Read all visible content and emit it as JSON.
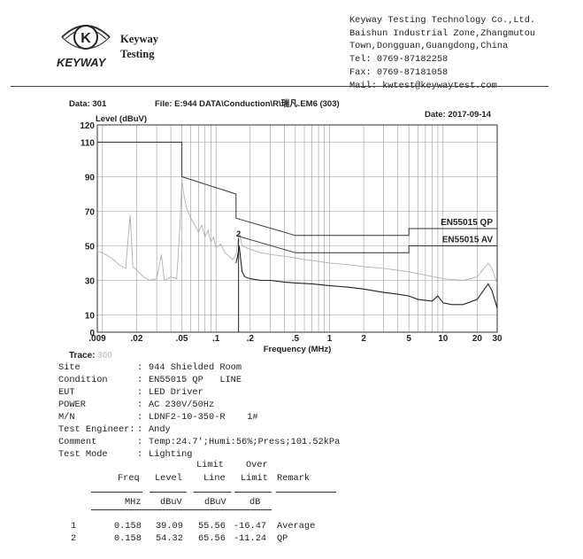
{
  "header": {
    "brand_logo_text": "KEYWAY",
    "company_short": [
      "Keyway",
      "Testing"
    ],
    "address_lines": [
      "Keyway Testing Technology Co.,Ltd.",
      "Baishun Industrial Zone,Zhangmutou",
      "Town,Dongguan,Guangdong,China",
      "Tel: 0769-87182258",
      "Fax: 0769-87181058",
      "Mail: kwtest@keywaytest.com"
    ]
  },
  "report": {
    "data_label": "Data: 301",
    "file_label": "File: E:944 DATA\\Conduction\\R\\瑞凡.EM6  (303)",
    "date_label": "Date: 2017-09-14",
    "trace_label": "Trace:",
    "trace_value": "300"
  },
  "chart_data": {
    "type": "line",
    "ylabel": "Level (dBuV)",
    "xlabel": "Frequency (MHz)",
    "x_scale": "log",
    "xlim": [
      0.009,
      30
    ],
    "ylim": [
      0,
      120
    ],
    "x_ticks": [
      {
        "v": 0.009,
        "label": ".009"
      },
      {
        "v": 0.02,
        "label": ".02"
      },
      {
        "v": 0.05,
        "label": ".05"
      },
      {
        "v": 0.1,
        "label": ".1"
      },
      {
        "v": 0.2,
        "label": ".2"
      },
      {
        "v": 0.5,
        "label": ".5"
      },
      {
        "v": 1,
        "label": "1"
      },
      {
        "v": 2,
        "label": "2"
      },
      {
        "v": 5,
        "label": "5"
      },
      {
        "v": 10,
        "label": "10"
      },
      {
        "v": 20,
        "label": "20"
      },
      {
        "v": 30,
        "label": "30"
      }
    ],
    "y_ticks": [
      0,
      10,
      30,
      50,
      70,
      90,
      110,
      120
    ],
    "grid": true,
    "limit_lines": [
      {
        "name": "EN55015 QP",
        "points": [
          [
            0.009,
            110
          ],
          [
            0.05,
            110
          ],
          [
            0.05,
            90
          ],
          [
            0.15,
            80
          ],
          [
            0.15,
            66
          ],
          [
            0.5,
            56
          ],
          [
            5,
            56
          ],
          [
            5,
            60
          ],
          [
            30,
            60
          ]
        ]
      },
      {
        "name": "EN55015 AV",
        "points": [
          [
            0.15,
            56
          ],
          [
            0.5,
            46
          ],
          [
            5,
            46
          ],
          [
            5,
            50
          ],
          [
            30,
            50
          ]
        ]
      }
    ],
    "series": [
      {
        "color": "#b0b0b0",
        "points": [
          [
            0.009,
            47
          ],
          [
            0.01,
            46
          ],
          [
            0.012,
            43
          ],
          [
            0.014,
            39
          ],
          [
            0.016,
            37
          ],
          [
            0.0175,
            68
          ],
          [
            0.0185,
            38
          ],
          [
            0.02,
            36
          ],
          [
            0.023,
            32
          ],
          [
            0.026,
            30
          ],
          [
            0.03,
            31
          ],
          [
            0.033,
            45
          ],
          [
            0.035,
            30
          ],
          [
            0.04,
            32
          ],
          [
            0.045,
            31
          ],
          [
            0.048,
            60
          ],
          [
            0.05,
            88
          ],
          [
            0.052,
            80
          ],
          [
            0.055,
            72
          ],
          [
            0.06,
            66
          ],
          [
            0.065,
            62
          ],
          [
            0.07,
            58
          ],
          [
            0.075,
            62
          ],
          [
            0.08,
            55
          ],
          [
            0.085,
            59
          ],
          [
            0.09,
            52
          ],
          [
            0.095,
            55
          ],
          [
            0.1,
            49
          ],
          [
            0.11,
            51
          ],
          [
            0.12,
            46
          ],
          [
            0.13,
            44
          ],
          [
            0.14,
            42
          ],
          [
            0.15,
            45
          ],
          [
            0.16,
            58
          ],
          [
            0.17,
            50
          ],
          [
            0.2,
            48
          ],
          [
            0.25,
            46
          ],
          [
            0.3,
            45
          ],
          [
            0.4,
            44
          ],
          [
            0.5,
            43
          ],
          [
            0.6,
            42
          ],
          [
            0.8,
            41
          ],
          [
            1,
            40
          ],
          [
            1.5,
            39
          ],
          [
            2,
            38
          ],
          [
            3,
            37
          ],
          [
            5,
            35
          ],
          [
            7,
            33
          ],
          [
            10,
            31
          ],
          [
            15,
            30
          ],
          [
            20,
            32
          ],
          [
            25,
            40
          ],
          [
            27,
            37
          ],
          [
            30,
            28
          ]
        ]
      },
      {
        "color": "#222222",
        "points": [
          [
            0.15,
            40
          ],
          [
            0.155,
            44
          ],
          [
            0.16,
            50
          ],
          [
            0.165,
            42
          ],
          [
            0.17,
            35
          ],
          [
            0.18,
            32
          ],
          [
            0.2,
            31
          ],
          [
            0.25,
            30
          ],
          [
            0.3,
            30
          ],
          [
            0.4,
            29
          ],
          [
            0.5,
            28.5
          ],
          [
            0.7,
            28
          ],
          [
            1,
            27
          ],
          [
            1.5,
            26
          ],
          [
            2,
            25
          ],
          [
            3,
            23
          ],
          [
            4,
            22
          ],
          [
            5,
            21
          ],
          [
            6,
            19
          ],
          [
            8,
            18
          ],
          [
            9,
            21
          ],
          [
            10,
            17
          ],
          [
            12,
            16
          ],
          [
            15,
            16
          ],
          [
            20,
            19
          ],
          [
            25,
            28
          ],
          [
            27,
            24
          ],
          [
            30,
            14
          ]
        ]
      }
    ],
    "markers": [
      {
        "label": "2",
        "x": 0.158,
        "y": 54.32
      }
    ]
  },
  "info": [
    {
      "label": "Site",
      "value": "944 Shielded Room"
    },
    {
      "label": "Condition",
      "value": "EN55015 QP   LINE"
    },
    {
      "label": "EUT",
      "value": "LED Driver"
    },
    {
      "label": "POWER",
      "value": "AC 230V/50Hz"
    },
    {
      "label": "M/N",
      "value": "LDNF2-10-350-R    1#"
    },
    {
      "label": "Test Engineer:",
      "value": "Andy"
    },
    {
      "label": "Comment",
      "value": "Temp:24.7';Humi:56%;Press;101.52kPa"
    },
    {
      "label": "Test Mode",
      "value": "Lighting"
    }
  ],
  "table": {
    "headers_top": [
      "Limit",
      "Over"
    ],
    "headers": [
      "Freq",
      "Level",
      "Line",
      "Limit",
      "Remark"
    ],
    "units": [
      "MHz",
      "dBuV",
      "dBuV",
      "dB"
    ],
    "rows": [
      {
        "no": "1",
        "freq": "0.158",
        "level": "39.09",
        "line": "55.56",
        "over": "-16.47",
        "remark": "Average"
      },
      {
        "no": "2",
        "freq": "0.158",
        "level": "54.32",
        "line": "65.56",
        "over": "-11.24",
        "remark": "QP"
      }
    ]
  }
}
